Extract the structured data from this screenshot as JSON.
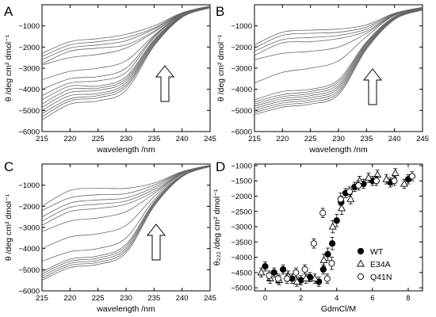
{
  "chart_data": [
    {
      "panel": "A",
      "type": "line",
      "xlabel": "wavelength /nm",
      "ylabel": "θ /deg cm² dmol⁻¹",
      "xlim": [
        215,
        245
      ],
      "ylim": [
        -6000,
        0
      ],
      "xticks": [
        215,
        220,
        225,
        230,
        235,
        240,
        245
      ],
      "yticks": [
        -6000,
        -5000,
        -4000,
        -3000,
        -2000,
        -1000
      ],
      "grid": false,
      "annotation": "upward arrow (increasing denaturant)",
      "series": [
        {
          "x": [
            215,
            220,
            225,
            230,
            235,
            240,
            245
          ],
          "values": [
            -5450,
            -4700,
            -4550,
            -4050,
            -1950,
            -600,
            -150
          ]
        },
        {
          "x": [
            215,
            220,
            225,
            230,
            235,
            240,
            245
          ],
          "values": [
            -5300,
            -4550,
            -4400,
            -3900,
            -1900,
            -580,
            -140
          ]
        },
        {
          "x": [
            215,
            220,
            225,
            230,
            235,
            240,
            245
          ],
          "values": [
            -5150,
            -4450,
            -4300,
            -3800,
            -1850,
            -570,
            -130
          ]
        },
        {
          "x": [
            215,
            220,
            225,
            230,
            235,
            240,
            245
          ],
          "values": [
            -5000,
            -4300,
            -4200,
            -3700,
            -1800,
            -560,
            -120
          ]
        },
        {
          "x": [
            215,
            220,
            225,
            230,
            235,
            240,
            245
          ],
          "values": [
            -4850,
            -4150,
            -4050,
            -3600,
            -1750,
            -540,
            -110
          ]
        },
        {
          "x": [
            215,
            220,
            225,
            230,
            235,
            240,
            245
          ],
          "values": [
            -4700,
            -4000,
            -3950,
            -3500,
            -1700,
            -520,
            -100
          ]
        },
        {
          "x": [
            215,
            220,
            225,
            230,
            235,
            240,
            245
          ],
          "values": [
            -4500,
            -3850,
            -3850,
            -3400,
            -1650,
            -500,
            -100
          ]
        },
        {
          "x": [
            215,
            220,
            225,
            230,
            235,
            240,
            245
          ],
          "values": [
            -4300,
            -3700,
            -3600,
            -3200,
            -1550,
            -480,
            -90
          ]
        },
        {
          "x": [
            215,
            220,
            225,
            230,
            235,
            240,
            245
          ],
          "values": [
            -4000,
            -3500,
            -3400,
            -3000,
            -1500,
            -460,
            -90
          ]
        },
        {
          "x": [
            215,
            220,
            225,
            230,
            235,
            240,
            245
          ],
          "values": [
            -3550,
            -3150,
            -3000,
            -2650,
            -1450,
            -440,
            -80
          ]
        },
        {
          "x": [
            215,
            220,
            225,
            230,
            235,
            240,
            245
          ],
          "values": [
            -2850,
            -2500,
            -2350,
            -2050,
            -1300,
            -420,
            -80
          ]
        },
        {
          "x": [
            215,
            220,
            225,
            230,
            235,
            240,
            245
          ],
          "values": [
            -2800,
            -2200,
            -2050,
            -1900,
            -1250,
            -410,
            -70
          ]
        },
        {
          "x": [
            215,
            220,
            225,
            230,
            235,
            240,
            245
          ],
          "values": [
            -2600,
            -2050,
            -1900,
            -1700,
            -1150,
            -400,
            -70
          ]
        },
        {
          "x": [
            215,
            220,
            225,
            230,
            235,
            240,
            245
          ],
          "values": [
            -2450,
            -1900,
            -1750,
            -1550,
            -1100,
            -390,
            -60
          ]
        },
        {
          "x": [
            215,
            220,
            225,
            230,
            235,
            240,
            245
          ],
          "values": [
            -2300,
            -1750,
            -1600,
            -1400,
            -1000,
            -380,
            -60
          ]
        }
      ]
    },
    {
      "panel": "B",
      "type": "line",
      "xlabel": "wavelength /nm",
      "ylabel": "θ /deg cm² dmol⁻¹",
      "xlim": [
        215,
        245
      ],
      "ylim": [
        -6000,
        0
      ],
      "xticks": [
        215,
        220,
        225,
        230,
        235,
        240,
        245
      ],
      "yticks": [
        -6000,
        -5000,
        -4000,
        -3000,
        -2000,
        -1000
      ],
      "grid": false,
      "annotation": "upward arrow (increasing denaturant)",
      "series": [
        {
          "x": [
            215,
            220,
            225,
            230,
            235,
            240,
            245
          ],
          "values": [
            -5200,
            -4850,
            -4700,
            -4250,
            -2100,
            -700,
            -250
          ]
        },
        {
          "x": [
            215,
            220,
            225,
            230,
            235,
            240,
            245
          ],
          "values": [
            -5100,
            -4750,
            -4600,
            -4150,
            -2050,
            -680,
            -240
          ]
        },
        {
          "x": [
            215,
            220,
            225,
            230,
            235,
            240,
            245
          ],
          "values": [
            -5000,
            -4650,
            -4500,
            -4050,
            -2000,
            -660,
            -230
          ]
        },
        {
          "x": [
            215,
            220,
            225,
            230,
            235,
            240,
            245
          ],
          "values": [
            -4900,
            -4550,
            -4400,
            -3950,
            -1950,
            -640,
            -220
          ]
        },
        {
          "x": [
            215,
            220,
            225,
            230,
            235,
            240,
            245
          ],
          "values": [
            -4800,
            -4450,
            -4300,
            -3850,
            -1900,
            -620,
            -210
          ]
        },
        {
          "x": [
            215,
            220,
            225,
            230,
            235,
            240,
            245
          ],
          "values": [
            -4700,
            -4350,
            -4200,
            -3750,
            -1850,
            -600,
            -200
          ]
        },
        {
          "x": [
            215,
            220,
            225,
            230,
            235,
            240,
            245
          ],
          "values": [
            -4600,
            -4250,
            -4100,
            -3650,
            -1800,
            -580,
            -190
          ]
        },
        {
          "x": [
            215,
            220,
            225,
            230,
            235,
            240,
            245
          ],
          "values": [
            -4500,
            -4100,
            -4000,
            -3550,
            -1750,
            -560,
            -180
          ]
        },
        {
          "x": [
            215,
            220,
            225,
            230,
            235,
            240,
            245
          ],
          "values": [
            -3700,
            -3200,
            -3000,
            -2650,
            -1500,
            -500,
            -170
          ]
        },
        {
          "x": [
            215,
            220,
            225,
            230,
            235,
            240,
            245
          ],
          "values": [
            -2600,
            -2300,
            -2200,
            -2000,
            -1350,
            -480,
            -160
          ]
        },
        {
          "x": [
            215,
            220,
            225,
            230,
            235,
            240,
            245
          ],
          "values": [
            -2400,
            -1800,
            -1750,
            -1600,
            -1250,
            -460,
            -150
          ]
        },
        {
          "x": [
            215,
            220,
            225,
            230,
            235,
            240,
            245
          ],
          "values": [
            -2200,
            -1650,
            -1550,
            -1450,
            -1150,
            -440,
            -140
          ]
        },
        {
          "x": [
            215,
            220,
            225,
            230,
            235,
            240,
            245
          ],
          "values": [
            -2050,
            -1450,
            -1350,
            -1300,
            -1050,
            -420,
            -130
          ]
        },
        {
          "x": [
            215,
            220,
            225,
            230,
            235,
            240,
            245
          ],
          "values": [
            -1900,
            -1300,
            -1200,
            -1150,
            -950,
            -400,
            -120
          ]
        }
      ]
    },
    {
      "panel": "C",
      "type": "line",
      "xlabel": "wavelength /nm",
      "ylabel": "θ /deg cm² dmol⁻¹",
      "xlim": [
        215,
        245
      ],
      "ylim": [
        -6000,
        0
      ],
      "xticks": [
        215,
        220,
        225,
        230,
        235,
        240,
        245
      ],
      "yticks": [
        -6000,
        -5000,
        -4000,
        -3000,
        -2000,
        -1000
      ],
      "grid": false,
      "annotation": "upward arrow (increasing denaturant)",
      "series": [
        {
          "x": [
            215,
            220,
            225,
            230,
            235,
            240,
            245
          ],
          "values": [
            -5500,
            -4900,
            -4750,
            -4200,
            -2000,
            -600,
            -120
          ]
        },
        {
          "x": [
            215,
            220,
            225,
            230,
            235,
            240,
            245
          ],
          "values": [
            -5400,
            -4800,
            -4650,
            -4100,
            -1950,
            -590,
            -110
          ]
        },
        {
          "x": [
            215,
            220,
            225,
            230,
            235,
            240,
            245
          ],
          "values": [
            -5300,
            -4700,
            -4550,
            -4000,
            -1900,
            -580,
            -100
          ]
        },
        {
          "x": [
            215,
            220,
            225,
            230,
            235,
            240,
            245
          ],
          "values": [
            -5200,
            -4600,
            -4450,
            -3900,
            -1850,
            -570,
            -100
          ]
        },
        {
          "x": [
            215,
            220,
            225,
            230,
            235,
            240,
            245
          ],
          "values": [
            -5100,
            -4500,
            -4350,
            -3800,
            -1800,
            -560,
            -90
          ]
        },
        {
          "x": [
            215,
            220,
            225,
            230,
            235,
            240,
            245
          ],
          "values": [
            -4600,
            -4150,
            -4000,
            -3500,
            -1700,
            -540,
            -90
          ]
        },
        {
          "x": [
            215,
            220,
            225,
            230,
            235,
            240,
            245
          ],
          "values": [
            -4000,
            -3450,
            -3300,
            -2900,
            -1550,
            -500,
            -80
          ]
        },
        {
          "x": [
            215,
            220,
            225,
            230,
            235,
            240,
            245
          ],
          "values": [
            -3200,
            -2700,
            -2550,
            -2250,
            -1400,
            -460,
            -80
          ]
        },
        {
          "x": [
            215,
            220,
            225,
            230,
            235,
            240,
            245
          ],
          "values": [
            -2900,
            -2250,
            -2100,
            -1900,
            -1300,
            -440,
            -70
          ]
        },
        {
          "x": [
            215,
            220,
            225,
            230,
            235,
            240,
            245
          ],
          "values": [
            -2700,
            -2050,
            -1900,
            -1750,
            -1200,
            -420,
            -70
          ]
        },
        {
          "x": [
            215,
            220,
            225,
            230,
            235,
            240,
            245
          ],
          "values": [
            -2500,
            -1850,
            -1700,
            -1600,
            -1100,
            -400,
            -60
          ]
        },
        {
          "x": [
            215,
            220,
            225,
            230,
            235,
            240,
            245
          ],
          "values": [
            -2200,
            -1600,
            -1450,
            -1400,
            -1000,
            -380,
            -60
          ]
        },
        {
          "x": [
            215,
            220,
            225,
            230,
            235,
            240,
            245
          ],
          "values": [
            -2000,
            -1250,
            -1150,
            -1150,
            -900,
            -360,
            -50
          ]
        }
      ]
    },
    {
      "panel": "D",
      "type": "scatter",
      "xlabel": "GdmCl/M",
      "ylabel": "θ₂₂₂ /deg cm² dmol⁻¹",
      "xlim": [
        -0.6,
        8.8
      ],
      "ylim": [
        -5100,
        -950
      ],
      "xticks": [
        0,
        2,
        4,
        6,
        8
      ],
      "yticks": [
        -5000,
        -4500,
        -4000,
        -3500,
        -3000,
        -2500,
        -2000,
        -1500,
        -1000
      ],
      "grid": false,
      "legend_position": "bottom-right",
      "series": [
        {
          "name": "WT",
          "marker": "filled-circle",
          "x": [
            0,
            0.5,
            1,
            1.5,
            2,
            2.5,
            3,
            3.25,
            3.5,
            3.75,
            4,
            4.25,
            4.5,
            5,
            5.5,
            6,
            7,
            8
          ],
          "values": [
            -4300,
            -4500,
            -4400,
            -4700,
            -4750,
            -4650,
            -4800,
            -4400,
            -3900,
            -3550,
            -2800,
            -2200,
            -1900,
            -1700,
            -1600,
            -1500,
            -1550,
            -1450
          ],
          "errors": [
            150,
            150,
            150,
            150,
            150,
            150,
            150,
            150,
            200,
            200,
            200,
            200,
            150,
            150,
            150,
            150,
            150,
            150
          ]
        },
        {
          "name": "E34A",
          "marker": "open-triangle",
          "x": [
            0,
            0.5,
            1,
            1.5,
            2,
            2.5,
            3,
            3.5,
            4,
            4.5,
            5,
            5.5,
            6,
            6.5,
            7,
            7.5,
            8
          ],
          "values": [
            -4500,
            -4700,
            -4750,
            -4600,
            -4800,
            -4700,
            -4700,
            -4100,
            -3000,
            -2400,
            -2100,
            -1500,
            -1400,
            -1300,
            -1450,
            -1250,
            -1600
          ],
          "errors": [
            150,
            150,
            150,
            150,
            150,
            150,
            150,
            200,
            200,
            200,
            150,
            150,
            150,
            150,
            150,
            150,
            150
          ]
        },
        {
          "name": "Q41N",
          "marker": "open-circle",
          "x": [
            0,
            0.5,
            1,
            1.5,
            2,
            2.5,
            3,
            3.25,
            3.5,
            4,
            4.5,
            5,
            6,
            7,
            8
          ],
          "values": [
            -4600,
            -4700,
            -4700,
            -4500,
            -4400,
            -3550,
            -2550,
            -4700,
            -4200,
            -2100,
            -1850,
            -1650,
            -1500,
            -1500,
            -1350
          ],
          "errors": [
            150,
            150,
            150,
            150,
            150,
            150,
            150,
            150,
            200,
            200,
            150,
            150,
            150,
            150,
            150
          ]
        }
      ]
    }
  ]
}
